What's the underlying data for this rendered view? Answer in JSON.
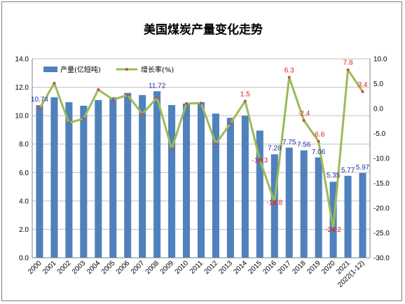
{
  "chart_data": {
    "type": "bar",
    "title": "美国煤炭产量变化走势",
    "categories": [
      "2000",
      "2001",
      "2002",
      "2003",
      "2004",
      "2005",
      "2006",
      "2007",
      "2008",
      "2009",
      "2010",
      "2011",
      "2012",
      "2013",
      "2014",
      "2015",
      "2016",
      "2017",
      "2018",
      "2019",
      "2020",
      "2021",
      "2022(1-12)"
    ],
    "series": [
      {
        "name": "产量(亿短吨)",
        "type": "bar",
        "axis": "left",
        "color": "#4f81bd",
        "values": [
          10.74,
          11.3,
          10.95,
          10.7,
          11.1,
          11.3,
          11.6,
          11.45,
          11.72,
          10.75,
          10.85,
          10.95,
          10.15,
          9.85,
          10.0,
          8.95,
          7.28,
          7.75,
          7.56,
          7.06,
          5.35,
          5.77,
          5.97
        ]
      },
      {
        "name": "增长率(%)",
        "type": "line",
        "axis": "right",
        "color": "#9bbb59",
        "marker_color": "#c0504d",
        "values": [
          0.0,
          5.1,
          -2.9,
          -2.0,
          3.8,
          1.8,
          2.7,
          -1.1,
          2.2,
          -8.1,
          1.0,
          1.1,
          -7.1,
          -3.0,
          1.5,
          -10.3,
          -18.8,
          6.3,
          -2.4,
          -6.6,
          -24.2,
          7.8,
          3.4
        ]
      }
    ],
    "bar_labels": [
      {
        "index": 0,
        "text": "10.74"
      },
      {
        "index": 8,
        "text": "11.72"
      },
      {
        "index": 16,
        "text": "7.28"
      },
      {
        "index": 17,
        "text": "7.75"
      },
      {
        "index": 18,
        "text": "7.56"
      },
      {
        "index": 19,
        "text": "7.06"
      },
      {
        "index": 20,
        "text": "5.35"
      },
      {
        "index": 21,
        "text": "5.77"
      },
      {
        "index": 22,
        "text": "5.97"
      }
    ],
    "rate_labels": [
      {
        "index": 14,
        "text": "1.5"
      },
      {
        "index": 15,
        "text": "-10.3"
      },
      {
        "index": 16,
        "text": "-18.8"
      },
      {
        "index": 17,
        "text": "6.3"
      },
      {
        "index": 18,
        "text": "-2.4"
      },
      {
        "index": 19,
        "text": "-6.6"
      },
      {
        "index": 20,
        "text": "-24.2"
      },
      {
        "index": 21,
        "text": "7.8"
      },
      {
        "index": 22,
        "text": "3.4"
      }
    ],
    "ylim_left": [
      0,
      14
    ],
    "yticks_left": [
      "0.0",
      "2.0",
      "4.0",
      "6.0",
      "8.0",
      "10.0",
      "12.0",
      "14.0"
    ],
    "ylim_right": [
      -30,
      10
    ],
    "yticks_right": [
      "-30.0",
      "-25.0",
      "-20.0",
      "-15.0",
      "-10.0",
      "-5.0",
      "0.0",
      "5.0",
      "10.0"
    ],
    "grid": true,
    "legend_position": "top-left"
  }
}
